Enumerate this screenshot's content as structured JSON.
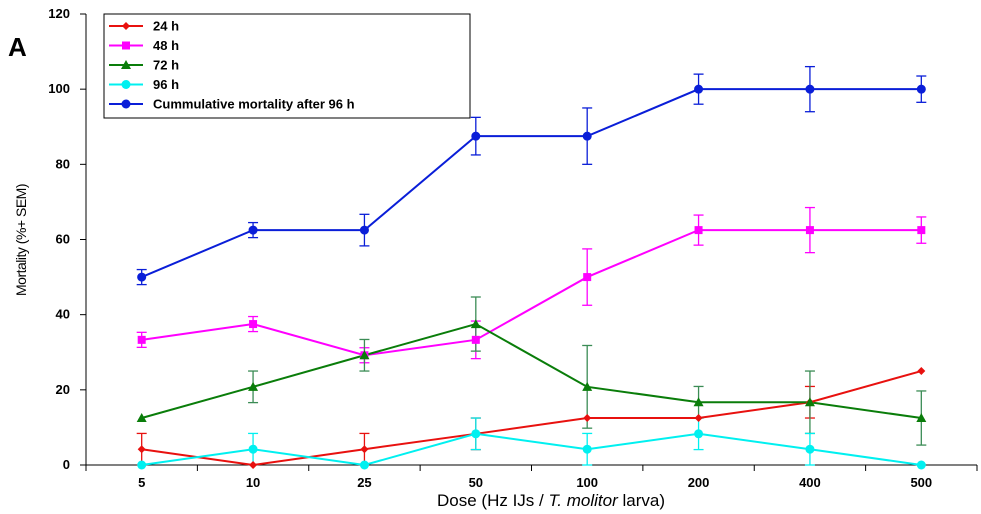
{
  "panel_label": "A",
  "chart_data": {
    "type": "line",
    "title": "",
    "ylabel": "Mortality (%+ SEM)",
    "xlabel_parts": [
      "Dose (Hz IJs / ",
      "T. molitor",
      " larva)"
    ],
    "categories": [
      "5",
      "10",
      "25",
      "50",
      "100",
      "200",
      "400",
      "500"
    ],
    "ylim": [
      0,
      120
    ],
    "yticks": [
      0,
      20,
      40,
      60,
      80,
      100,
      120
    ],
    "grid": false,
    "legend_position": "top-left",
    "series": [
      {
        "name": "24 h",
        "color": "#e8110f",
        "errcolor": "#e8110f",
        "marker": "diamond",
        "values": [
          4.2,
          0,
          4.2,
          8.3,
          12.5,
          12.5,
          16.7,
          25
        ],
        "errors": [
          4.2,
          0,
          4.2,
          4.2,
          0,
          0,
          4.2,
          0
        ]
      },
      {
        "name": "48 h",
        "color": "#ff00ff",
        "errcolor": "#ff00ff",
        "marker": "square",
        "values": [
          33.3,
          37.5,
          29.2,
          33.3,
          50,
          62.5,
          62.5,
          62.5
        ],
        "errors": [
          2,
          2,
          2,
          5,
          7.5,
          4,
          6,
          3.5
        ]
      },
      {
        "name": "72 h",
        "color": "#0a7d0a",
        "errcolor": "#3b8c55",
        "marker": "triangle",
        "values": [
          12.5,
          20.8,
          29.2,
          37.5,
          20.8,
          16.7,
          16.7,
          12.5
        ],
        "errors": [
          0,
          4.2,
          4.2,
          7.2,
          11,
          4.2,
          8.3,
          7.2
        ]
      },
      {
        "name": "96 h",
        "color": "#00f0f0",
        "errcolor": "#00f0f0",
        "marker": "circle",
        "values": [
          0,
          4.2,
          0,
          8.3,
          4.2,
          8.3,
          4.2,
          0
        ],
        "errors": [
          0,
          4.2,
          0,
          4.2,
          4.2,
          4.2,
          4.2,
          0
        ]
      },
      {
        "name": "Cummulative mortality after 96 h",
        "color": "#0a1ed8",
        "errcolor": "#0a1ed8",
        "marker": "circle",
        "values": [
          50,
          62.5,
          62.5,
          87.5,
          87.5,
          100,
          100,
          100
        ],
        "errors": [
          2,
          2,
          4.2,
          5,
          7.5,
          4,
          6,
          3.5
        ]
      }
    ]
  }
}
